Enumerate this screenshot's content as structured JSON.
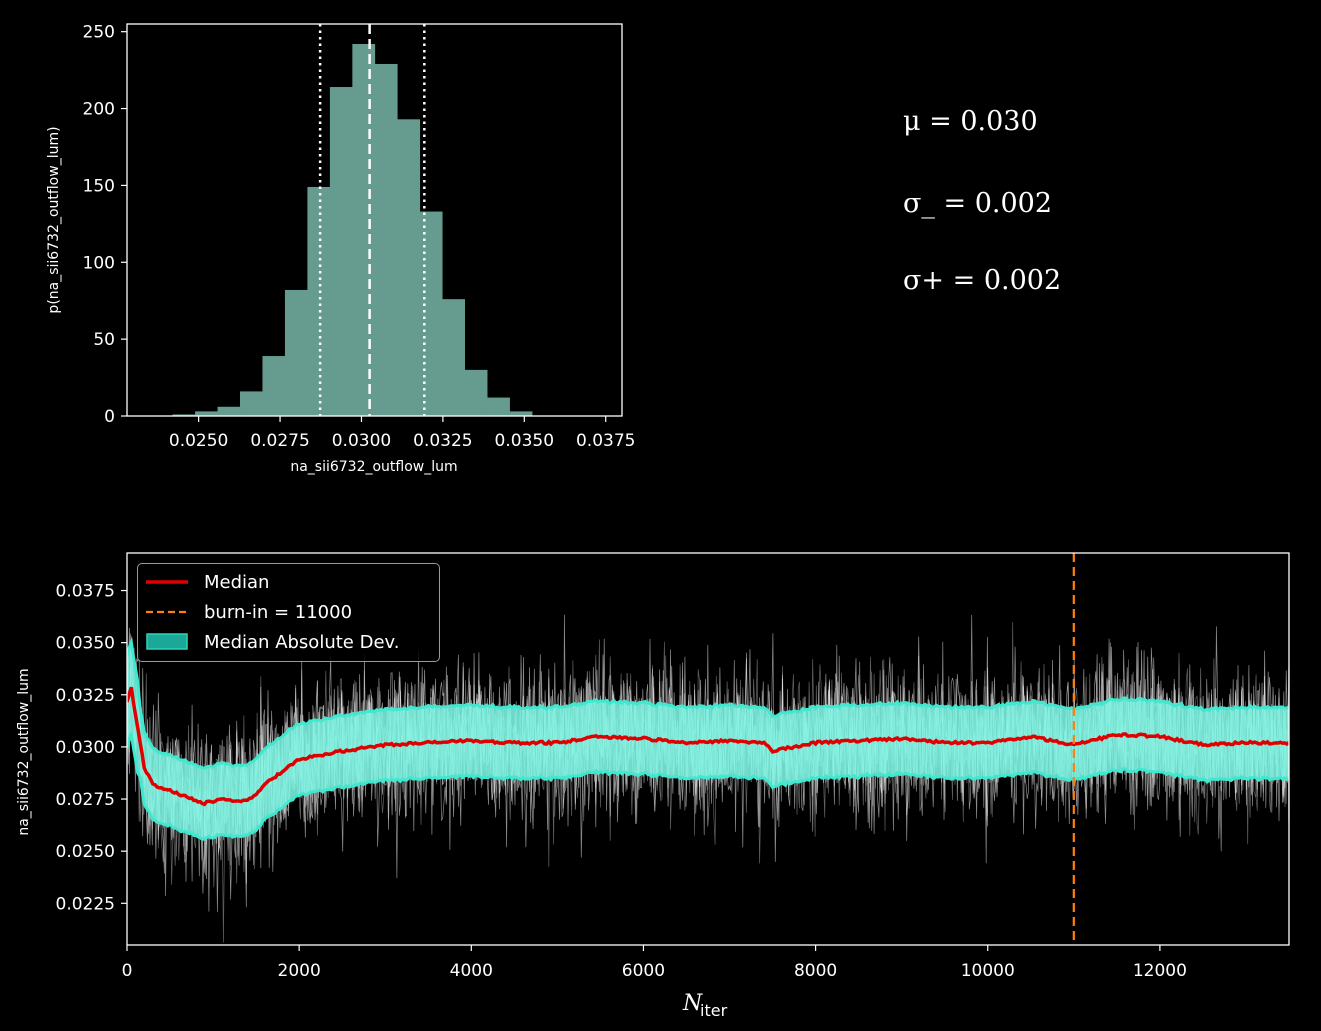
{
  "stats": {
    "mu": "μ = 0.030",
    "sigma_minus": "σ_ = 0.002",
    "sigma_plus": "σ+ = 0.002"
  },
  "chart_data": [
    {
      "type": "bar",
      "title": "",
      "xlabel": "na_sii6732_outflow_lum",
      "ylabel": "p(na_sii6732_outflow_lum)",
      "xlim": [
        0.0228,
        0.038
      ],
      "ylim": [
        0,
        255
      ],
      "xticks": [
        "0.0250",
        "0.0275",
        "0.0300",
        "0.0325",
        "0.0350",
        "0.0375"
      ],
      "yticks": [
        "0",
        "50",
        "100",
        "150",
        "200",
        "250"
      ],
      "bin_width": 0.00069,
      "bins_left": [
        0.0242,
        0.02489,
        0.02558,
        0.02627,
        0.02696,
        0.02765,
        0.02834,
        0.02903,
        0.02972,
        0.03041,
        0.0311,
        0.03179,
        0.03248,
        0.03317,
        0.03386,
        0.03455
      ],
      "counts": [
        1,
        3,
        6,
        16,
        39,
        82,
        149,
        214,
        242,
        229,
        193,
        133,
        76,
        30,
        12,
        3
      ],
      "bar_color": "#669b8f",
      "vlines": {
        "median": 0.03025,
        "lower": 0.02873,
        "upper": 0.03193
      },
      "grid": false
    },
    {
      "type": "line",
      "title": "",
      "xlabel": "N_iter",
      "ylabel": "na_sii6732_outflow_lum",
      "xlim": [
        0,
        13500
      ],
      "ylim": [
        0.0205,
        0.0393
      ],
      "xticks": [
        "0",
        "2000",
        "4000",
        "6000",
        "8000",
        "10000",
        "12000"
      ],
      "yticks": [
        "0.0225",
        "0.0250",
        "0.0275",
        "0.0300",
        "0.0325",
        "0.0350",
        "0.0375"
      ],
      "series": [
        {
          "name": "Median",
          "color": "#e00000",
          "x": [
            0,
            50,
            100,
            200,
            300,
            500,
            700,
            900,
            1100,
            1300,
            1450,
            1600,
            1800,
            2000,
            2500,
            3000,
            3500,
            4000,
            4500,
            5000,
            5500,
            6000,
            6500,
            7000,
            7400,
            7500,
            8000,
            8500,
            9000,
            9500,
            10000,
            10500,
            11000,
            11500,
            12000,
            12500,
            13000,
            13500
          ],
          "y": [
            0.0322,
            0.0328,
            0.0315,
            0.029,
            0.0282,
            0.0279,
            0.0276,
            0.0273,
            0.0275,
            0.0274,
            0.0275,
            0.0282,
            0.0288,
            0.0294,
            0.0298,
            0.0301,
            0.0302,
            0.0303,
            0.0302,
            0.0302,
            0.0305,
            0.0304,
            0.0302,
            0.0303,
            0.0302,
            0.0298,
            0.0302,
            0.0303,
            0.0304,
            0.0302,
            0.0302,
            0.0305,
            0.0301,
            0.0306,
            0.0305,
            0.0301,
            0.0302,
            0.0302
          ]
        },
        {
          "name": "burn-in = 11000",
          "color": "#ff7f0e",
          "x": [
            11000,
            11000
          ],
          "y": [
            0.0205,
            0.0393
          ]
        },
        {
          "name": "Median Absolute Dev.",
          "color": "#2ab9a8",
          "band": 0.0017
        }
      ],
      "legend_position": "upper-left",
      "grid": false
    }
  ]
}
